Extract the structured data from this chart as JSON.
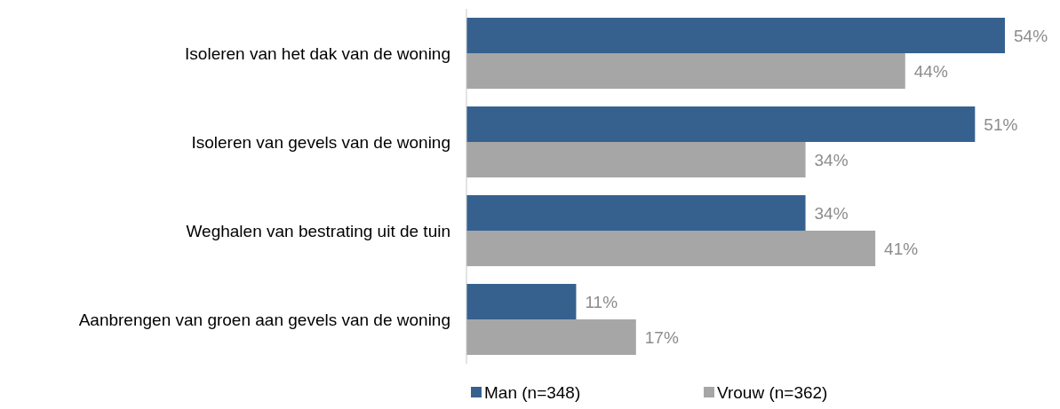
{
  "chart_data": {
    "type": "bar",
    "orientation": "horizontal",
    "categories": [
      "Isoleren van het dak van de woning",
      "Isoleren van gevels van de woning",
      "Weghalen van bestrating uit de tuin",
      "Aanbrengen van groen aan gevels van de woning"
    ],
    "series": [
      {
        "name": "Man (n=348)",
        "color": "#36618f",
        "values": [
          54,
          51,
          34,
          11
        ],
        "value_labels": [
          "54%",
          "51%",
          "34%",
          "11%"
        ]
      },
      {
        "name": "Vrouw (n=362)",
        "color": "#a6a6a6",
        "values": [
          44,
          34,
          41,
          17
        ],
        "value_labels": [
          "44%",
          "34%",
          "41%",
          "17%"
        ]
      }
    ],
    "legend": "bottom",
    "tick_labels": "y"
  }
}
